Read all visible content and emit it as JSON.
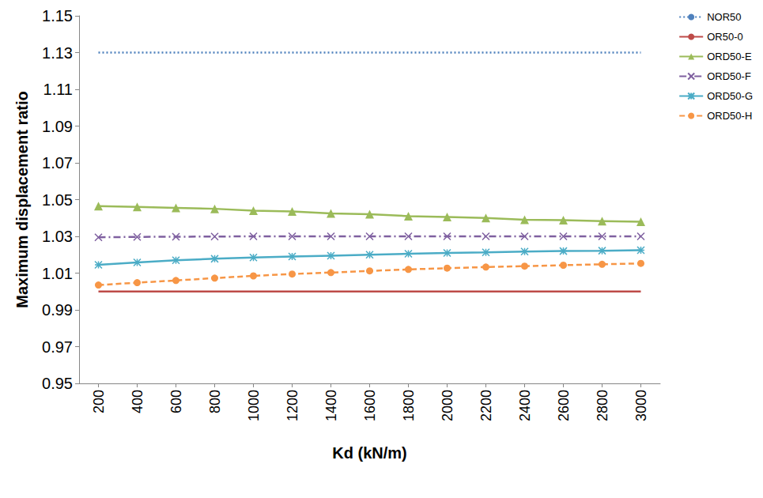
{
  "chart_data": {
    "type": "line",
    "x_label": "Kd (kN/m)",
    "y_label": "Maximum displacement ratio",
    "categories": [
      "200",
      "400",
      "600",
      "800",
      "1000",
      "1200",
      "1400",
      "1600",
      "1800",
      "2000",
      "2200",
      "2400",
      "2600",
      "2800",
      "3000"
    ],
    "ylim": [
      0.95,
      1.15
    ],
    "yticks": [
      0.95,
      0.97,
      0.99,
      1.01,
      1.03,
      1.05,
      1.07,
      1.09,
      1.11,
      1.13,
      1.15
    ],
    "grid": false,
    "legend": "right",
    "series": [
      {
        "name": "NOR50",
        "color": "#4f81bd",
        "line_style": "dotted",
        "marker": "none",
        "values": [
          1.13,
          1.13,
          1.13,
          1.13,
          1.13,
          1.13,
          1.13,
          1.13,
          1.13,
          1.13,
          1.13,
          1.13,
          1.13,
          1.13,
          1.13
        ]
      },
      {
        "name": "OR50-0",
        "color": "#be4b48",
        "line_style": "solid",
        "marker": "none",
        "values": [
          1.0,
          1.0,
          1.0,
          1.0,
          1.0,
          1.0,
          1.0,
          1.0,
          1.0,
          1.0,
          1.0,
          1.0,
          1.0,
          1.0,
          1.0
        ]
      },
      {
        "name": "ORD50-E",
        "color": "#9bbb59",
        "line_style": "solid",
        "marker": "triangle",
        "values": [
          1.0465,
          1.046,
          1.0455,
          1.045,
          1.044,
          1.0435,
          1.0425,
          1.042,
          1.041,
          1.0405,
          1.04,
          1.039,
          1.0388,
          1.0383,
          1.038
        ]
      },
      {
        "name": "ORD50-F",
        "color": "#7f60a0",
        "line_style": "dashdot",
        "marker": "x",
        "values": [
          1.0295,
          1.0297,
          1.0298,
          1.0299,
          1.03,
          1.03,
          1.03,
          1.03,
          1.03,
          1.03,
          1.03,
          1.03,
          1.03,
          1.03,
          1.03
        ]
      },
      {
        "name": "ORD50-G",
        "color": "#4bacc6",
        "line_style": "solid",
        "marker": "asterisk",
        "values": [
          1.0145,
          1.0158,
          1.017,
          1.0178,
          1.0185,
          1.019,
          1.0195,
          1.02,
          1.0205,
          1.021,
          1.0213,
          1.0217,
          1.022,
          1.0222,
          1.0225
        ]
      },
      {
        "name": "ORD50-H",
        "color": "#f79646",
        "line_style": "dashed",
        "marker": "circle",
        "values": [
          1.0035,
          1.0048,
          1.006,
          1.0073,
          1.0085,
          1.0095,
          1.0103,
          1.0112,
          1.012,
          1.0127,
          1.0133,
          1.0138,
          1.0143,
          1.0148,
          1.0153
        ]
      }
    ]
  }
}
